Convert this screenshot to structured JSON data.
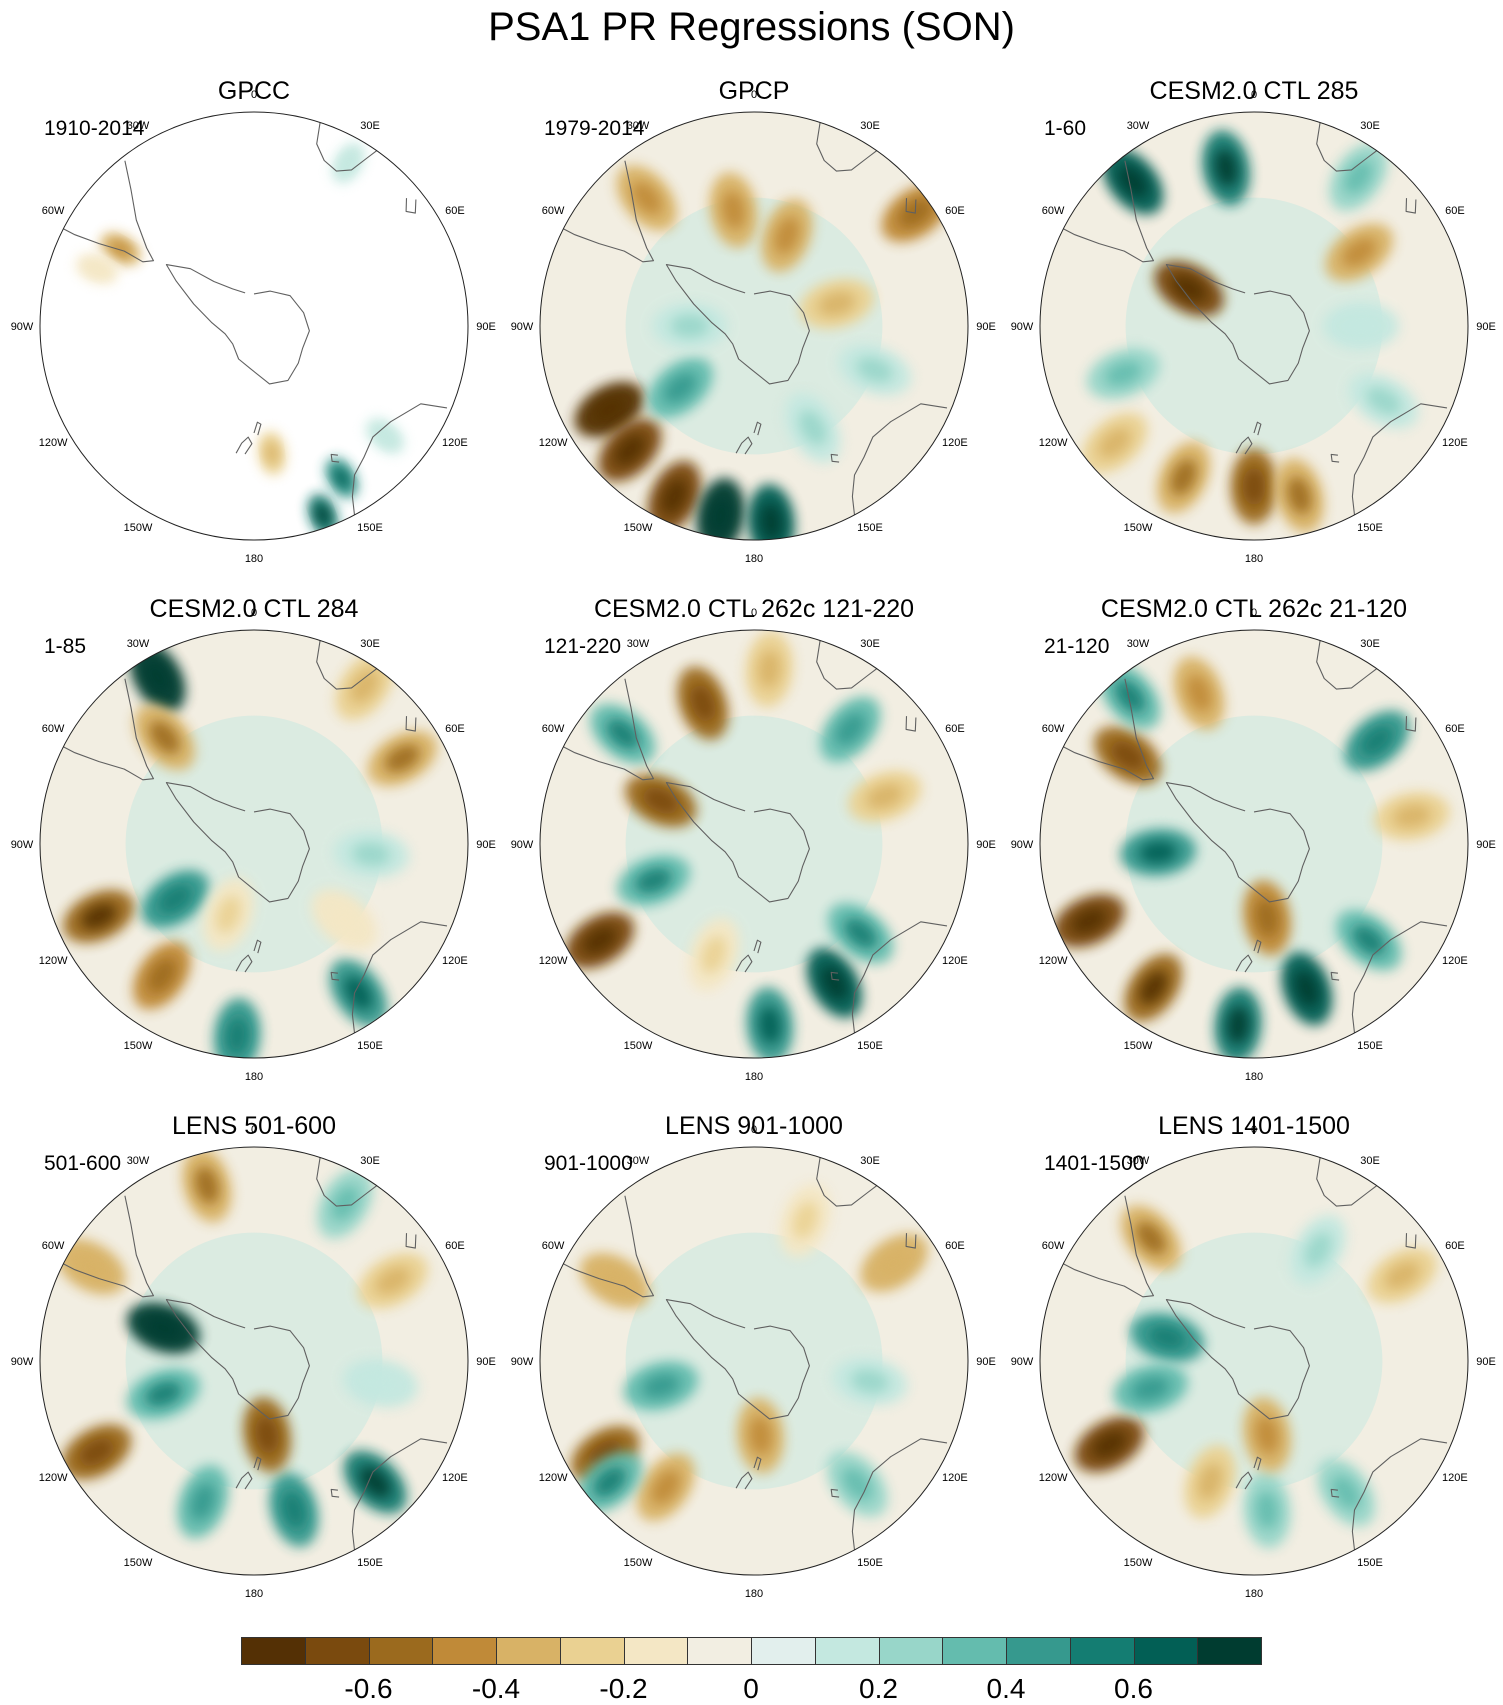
{
  "title": "PSA1 PR Regressions (SON)",
  "lon_labels": [
    "0",
    "30E",
    "60E",
    "90E",
    "120E",
    "150E",
    "180",
    "150W",
    "120W",
    "90W",
    "60W",
    "30W"
  ],
  "panels": [
    {
      "title": "GPCC",
      "period": "1910-2014",
      "type": "obs-land",
      "features": [
        {
          "ang": 300,
          "r": 0.72,
          "v": -0.3
        },
        {
          "ang": 290,
          "r": 0.78,
          "v": -0.1
        },
        {
          "ang": 150,
          "r": 0.82,
          "v": 0.45
        },
        {
          "ang": 160,
          "r": 0.94,
          "v": 0.5
        },
        {
          "ang": 130,
          "r": 0.8,
          "v": 0.1
        },
        {
          "ang": 30,
          "r": 0.88,
          "v": 0.1
        },
        {
          "ang": 172,
          "r": 0.6,
          "v": -0.2
        }
      ]
    },
    {
      "title": "GPCP",
      "period": "1979-2014",
      "type": "full",
      "features": [
        {
          "ang": 240,
          "r": 0.78,
          "v": -0.7
        },
        {
          "ang": 225,
          "r": 0.82,
          "v": -0.6
        },
        {
          "ang": 205,
          "r": 0.88,
          "v": -0.55
        },
        {
          "ang": 190,
          "r": 0.9,
          "v": 0.7
        },
        {
          "ang": 175,
          "r": 0.92,
          "v": 0.55
        },
        {
          "ang": 230,
          "r": 0.45,
          "v": 0.3
        },
        {
          "ang": 350,
          "r": 0.55,
          "v": -0.3
        },
        {
          "ang": 20,
          "r": 0.45,
          "v": -0.3
        },
        {
          "ang": 55,
          "r": 0.92,
          "v": -0.4
        },
        {
          "ang": 320,
          "r": 0.78,
          "v": -0.3
        },
        {
          "ang": 75,
          "r": 0.4,
          "v": -0.2
        },
        {
          "ang": 110,
          "r": 0.6,
          "v": 0.15
        },
        {
          "ang": 270,
          "r": 0.3,
          "v": 0.15
        },
        {
          "ang": 150,
          "r": 0.55,
          "v": 0.15
        }
      ]
    },
    {
      "title": "CESM2.0 CTL 285",
      "period": "1-60",
      "type": "full",
      "features": [
        {
          "ang": 320,
          "r": 0.88,
          "v": 0.55
        },
        {
          "ang": 350,
          "r": 0.75,
          "v": 0.5
        },
        {
          "ang": 180,
          "r": 0.75,
          "v": -0.45
        },
        {
          "ang": 165,
          "r": 0.82,
          "v": -0.35
        },
        {
          "ang": 205,
          "r": 0.78,
          "v": -0.35
        },
        {
          "ang": 300,
          "r": 0.35,
          "v": -0.6
        },
        {
          "ang": 55,
          "r": 0.6,
          "v": -0.3
        },
        {
          "ang": 35,
          "r": 0.85,
          "v": 0.25
        },
        {
          "ang": 250,
          "r": 0.65,
          "v": 0.25
        },
        {
          "ang": 120,
          "r": 0.7,
          "v": 0.15
        },
        {
          "ang": 230,
          "r": 0.85,
          "v": -0.2
        },
        {
          "ang": 90,
          "r": 0.5,
          "v": 0.1
        }
      ]
    },
    {
      "title": "CESM2.0 CTL 284",
      "period": "1-85",
      "type": "full",
      "features": [
        {
          "ang": 330,
          "r": 0.9,
          "v": 0.7
        },
        {
          "ang": 320,
          "r": 0.65,
          "v": -0.35
        },
        {
          "ang": 245,
          "r": 0.8,
          "v": -0.5
        },
        {
          "ang": 215,
          "r": 0.75,
          "v": -0.4
        },
        {
          "ang": 235,
          "r": 0.45,
          "v": 0.4
        },
        {
          "ang": 145,
          "r": 0.85,
          "v": 0.45
        },
        {
          "ang": 185,
          "r": 0.9,
          "v": 0.4
        },
        {
          "ang": 60,
          "r": 0.8,
          "v": -0.35
        },
        {
          "ang": 35,
          "r": 0.9,
          "v": -0.2
        },
        {
          "ang": 200,
          "r": 0.35,
          "v": -0.15
        },
        {
          "ang": 95,
          "r": 0.55,
          "v": 0.15
        },
        {
          "ang": 130,
          "r": 0.55,
          "v": -0.1
        }
      ]
    },
    {
      "title": "CESM2.0 CTL 262c 121-220",
      "period": "121-220",
      "type": "full",
      "features": [
        {
          "ang": 340,
          "r": 0.7,
          "v": -0.45
        },
        {
          "ang": 310,
          "r": 0.8,
          "v": 0.35
        },
        {
          "ang": 295,
          "r": 0.48,
          "v": -0.45
        },
        {
          "ang": 238,
          "r": 0.85,
          "v": -0.6
        },
        {
          "ang": 250,
          "r": 0.5,
          "v": 0.35
        },
        {
          "ang": 150,
          "r": 0.75,
          "v": 0.55
        },
        {
          "ang": 175,
          "r": 0.85,
          "v": 0.45
        },
        {
          "ang": 130,
          "r": 0.65,
          "v": 0.35
        },
        {
          "ang": 40,
          "r": 0.7,
          "v": 0.3
        },
        {
          "ang": 70,
          "r": 0.65,
          "v": -0.2
        },
        {
          "ang": 200,
          "r": 0.55,
          "v": -0.15
        },
        {
          "ang": 5,
          "r": 0.82,
          "v": -0.2
        }
      ]
    },
    {
      "title": "CESM2.0 CTL 262c 21-120",
      "period": "21-120",
      "type": "full",
      "features": [
        {
          "ang": 305,
          "r": 0.72,
          "v": -0.45
        },
        {
          "ang": 340,
          "r": 0.75,
          "v": -0.3
        },
        {
          "ang": 245,
          "r": 0.85,
          "v": -0.55
        },
        {
          "ang": 215,
          "r": 0.82,
          "v": -0.5
        },
        {
          "ang": 265,
          "r": 0.45,
          "v": 0.45
        },
        {
          "ang": 160,
          "r": 0.72,
          "v": 0.55
        },
        {
          "ang": 185,
          "r": 0.85,
          "v": 0.5
        },
        {
          "ang": 130,
          "r": 0.7,
          "v": 0.35
        },
        {
          "ang": 50,
          "r": 0.75,
          "v": 0.4
        },
        {
          "ang": 170,
          "r": 0.35,
          "v": -0.4
        },
        {
          "ang": 80,
          "r": 0.75,
          "v": -0.2
        },
        {
          "ang": 320,
          "r": 0.9,
          "v": 0.35
        }
      ]
    },
    {
      "title": "LENS 501-600",
      "period": "501-600",
      "type": "full",
      "features": [
        {
          "ang": 345,
          "r": 0.85,
          "v": -0.35
        },
        {
          "ang": 290,
          "r": 0.45,
          "v": 0.65
        },
        {
          "ang": 240,
          "r": 0.85,
          "v": -0.45
        },
        {
          "ang": 250,
          "r": 0.45,
          "v": 0.35
        },
        {
          "ang": 135,
          "r": 0.8,
          "v": 0.5
        },
        {
          "ang": 165,
          "r": 0.72,
          "v": 0.4
        },
        {
          "ang": 200,
          "r": 0.7,
          "v": 0.3
        },
        {
          "ang": 170,
          "r": 0.35,
          "v": -0.45
        },
        {
          "ang": 60,
          "r": 0.75,
          "v": -0.2
        },
        {
          "ang": 300,
          "r": 0.88,
          "v": -0.25
        },
        {
          "ang": 100,
          "r": 0.6,
          "v": 0.1
        },
        {
          "ang": 30,
          "r": 0.85,
          "v": 0.2
        }
      ]
    },
    {
      "title": "LENS 901-1000",
      "period": "901-1000",
      "type": "full",
      "features": [
        {
          "ang": 238,
          "r": 0.82,
          "v": -0.45
        },
        {
          "ang": 215,
          "r": 0.72,
          "v": -0.3
        },
        {
          "ang": 255,
          "r": 0.45,
          "v": 0.3
        },
        {
          "ang": 230,
          "r": 0.88,
          "v": 0.35
        },
        {
          "ang": 175,
          "r": 0.35,
          "v": -0.3
        },
        {
          "ang": 300,
          "r": 0.75,
          "v": -0.25
        },
        {
          "ang": 55,
          "r": 0.8,
          "v": -0.25
        },
        {
          "ang": 140,
          "r": 0.75,
          "v": 0.2
        },
        {
          "ang": 100,
          "r": 0.55,
          "v": 0.15
        },
        {
          "ang": 20,
          "r": 0.7,
          "v": -0.15
        }
      ]
    },
    {
      "title": "LENS 1401-1500",
      "period": "1401-1500",
      "type": "full",
      "features": [
        {
          "ang": 240,
          "r": 0.78,
          "v": -0.55
        },
        {
          "ang": 320,
          "r": 0.75,
          "v": -0.35
        },
        {
          "ang": 285,
          "r": 0.42,
          "v": 0.4
        },
        {
          "ang": 255,
          "r": 0.5,
          "v": 0.3
        },
        {
          "ang": 175,
          "r": 0.7,
          "v": 0.25
        },
        {
          "ang": 145,
          "r": 0.75,
          "v": 0.2
        },
        {
          "ang": 200,
          "r": 0.6,
          "v": -0.2
        },
        {
          "ang": 60,
          "r": 0.8,
          "v": -0.2
        },
        {
          "ang": 170,
          "r": 0.35,
          "v": -0.3
        },
        {
          "ang": 30,
          "r": 0.6,
          "v": 0.15
        }
      ]
    }
  ],
  "colorbar": {
    "colors": [
      "#543005",
      "#7a4a0e",
      "#9b6a1e",
      "#c08a38",
      "#d8b266",
      "#ead192",
      "#f4e7c5",
      "#f2eee2",
      "#e2efed",
      "#c4e8e0",
      "#98d6c9",
      "#64bcae",
      "#36998e",
      "#147d72",
      "#025f55",
      "#003c30"
    ],
    "levels": [
      -0.7,
      -0.6,
      -0.5,
      -0.4,
      -0.3,
      -0.2,
      -0.1,
      -0.02,
      0.02,
      0.1,
      0.2,
      0.3,
      0.4,
      0.5,
      0.6,
      0.7
    ],
    "labels": [
      "-0.6",
      "-0.4",
      "-0.2",
      "0",
      "0.2",
      "0.4",
      "0.6"
    ],
    "label_values": [
      -0.6,
      -0.4,
      -0.2,
      0,
      0.2,
      0.4,
      0.6
    ],
    "land_outline": "#606060"
  }
}
